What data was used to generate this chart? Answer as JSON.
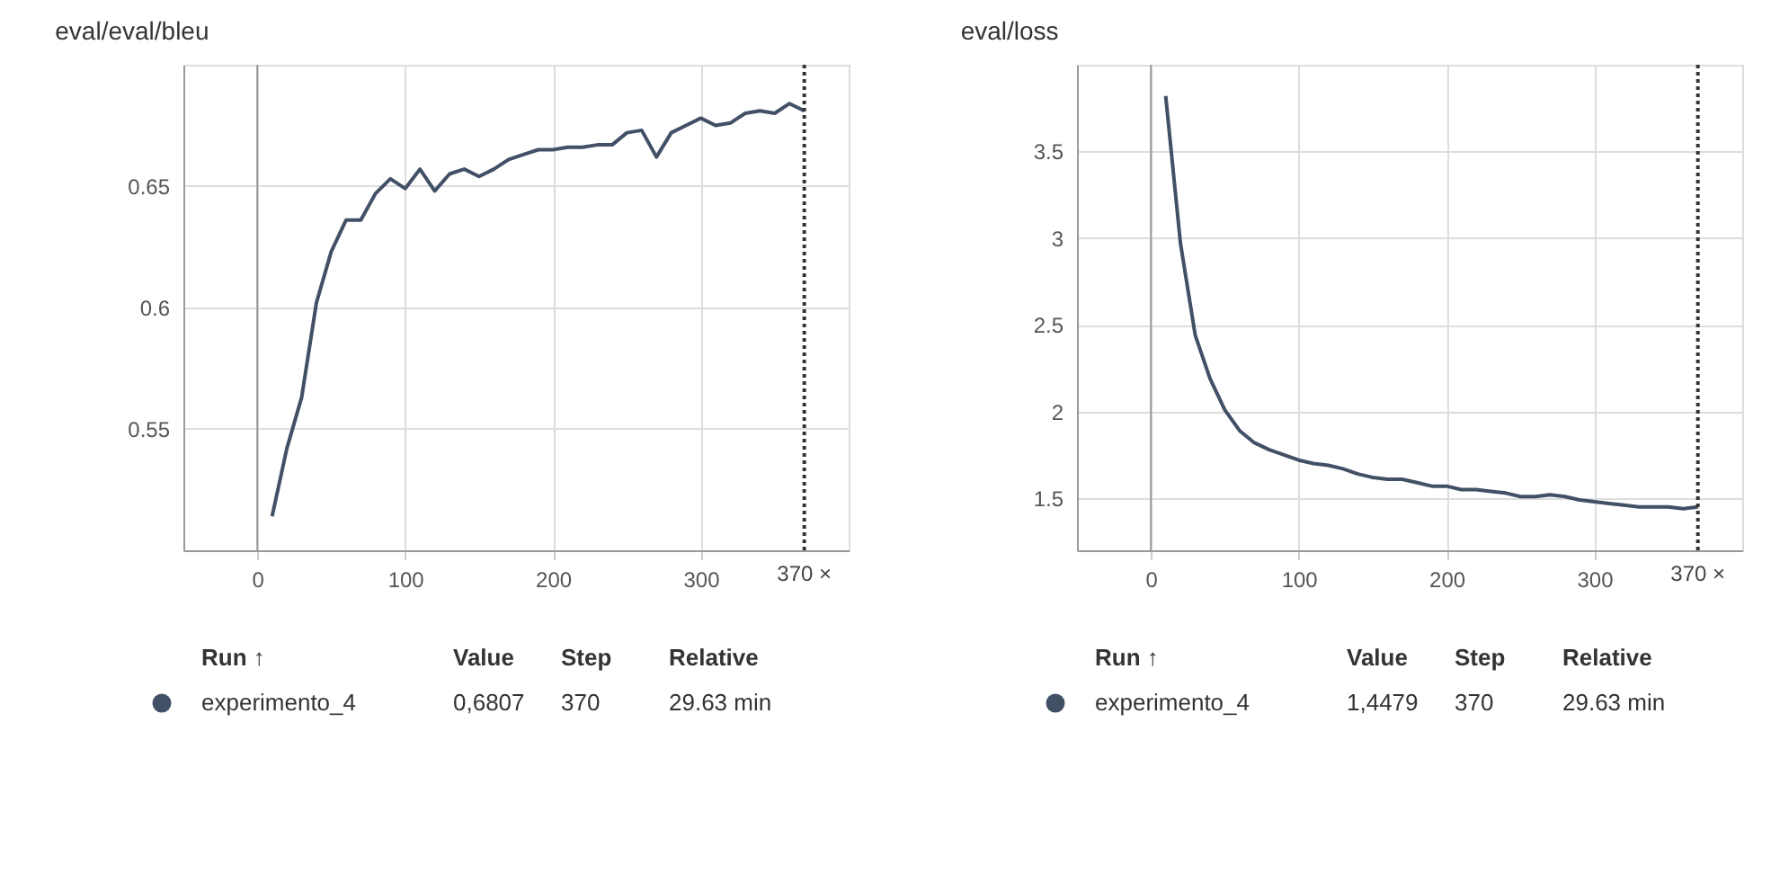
{
  "chart_data": [
    {
      "type": "line",
      "title": "eval/eval/bleu",
      "x": [
        10,
        20,
        30,
        40,
        50,
        60,
        70,
        80,
        90,
        100,
        110,
        120,
        130,
        140,
        150,
        160,
        170,
        180,
        190,
        200,
        210,
        220,
        230,
        240,
        250,
        260,
        270,
        280,
        290,
        300,
        310,
        320,
        330,
        340,
        350,
        360,
        370
      ],
      "series": [
        {
          "name": "experimento_4",
          "color": "#425066",
          "values": [
            0.514,
            0.542,
            0.563,
            0.602,
            0.623,
            0.636,
            0.636,
            0.647,
            0.653,
            0.649,
            0.657,
            0.648,
            0.655,
            0.657,
            0.654,
            0.657,
            0.661,
            0.663,
            0.665,
            0.665,
            0.666,
            0.666,
            0.667,
            0.667,
            0.672,
            0.673,
            0.662,
            0.672,
            0.675,
            0.678,
            0.675,
            0.676,
            0.68,
            0.681,
            0.68,
            0.684,
            0.681
          ]
        }
      ],
      "xlim": [
        -50,
        400
      ],
      "xticks": [
        0,
        100,
        200,
        300
      ],
      "ylim": [
        0.5,
        0.7
      ],
      "yticks": [
        0.55,
        0.6,
        0.65
      ],
      "grid": true,
      "legend": "bottom",
      "marker": "none",
      "line_style": "solid",
      "ref_lines": [
        {
          "axis": "x",
          "value": 370,
          "label": "370 ×",
          "line_style": "dotted",
          "color": "#333333"
        }
      ],
      "annotations": [
        "Run ↑",
        "Value",
        "Step",
        "Relative",
        "0,6807",
        "370",
        "29.63 min"
      ]
    },
    {
      "type": "line",
      "title": "eval/loss",
      "x": [
        10,
        20,
        30,
        40,
        50,
        60,
        70,
        80,
        90,
        100,
        110,
        120,
        130,
        140,
        150,
        160,
        170,
        180,
        190,
        200,
        210,
        220,
        230,
        240,
        250,
        260,
        270,
        280,
        290,
        300,
        310,
        320,
        330,
        340,
        350,
        360,
        370
      ],
      "series": [
        {
          "name": "experimento_4",
          "color": "#425066",
          "values": [
            3.82,
            2.97,
            2.44,
            2.19,
            2.01,
            1.89,
            1.82,
            1.78,
            1.75,
            1.72,
            1.7,
            1.69,
            1.67,
            1.64,
            1.62,
            1.61,
            1.61,
            1.59,
            1.57,
            1.57,
            1.55,
            1.55,
            1.54,
            1.53,
            1.51,
            1.51,
            1.52,
            1.51,
            1.49,
            1.48,
            1.47,
            1.46,
            1.45,
            1.45,
            1.45,
            1.44,
            1.45
          ]
        }
      ],
      "xlim": [
        -50,
        400
      ],
      "xticks": [
        0,
        100,
        200,
        300
      ],
      "ylim": [
        1.2,
        4
      ],
      "yticks": [
        1.5,
        2,
        2.5,
        3,
        3.5
      ],
      "grid": true,
      "legend": "bottom",
      "marker": "none",
      "line_style": "solid",
      "ref_lines": [
        {
          "axis": "x",
          "value": 370,
          "label": "370 ×",
          "line_style": "dotted",
          "color": "#333333"
        }
      ],
      "annotations": [
        "Run ↑",
        "Value",
        "Step",
        "Relative",
        "1,4479",
        "370",
        "29.63 min"
      ]
    }
  ]
}
